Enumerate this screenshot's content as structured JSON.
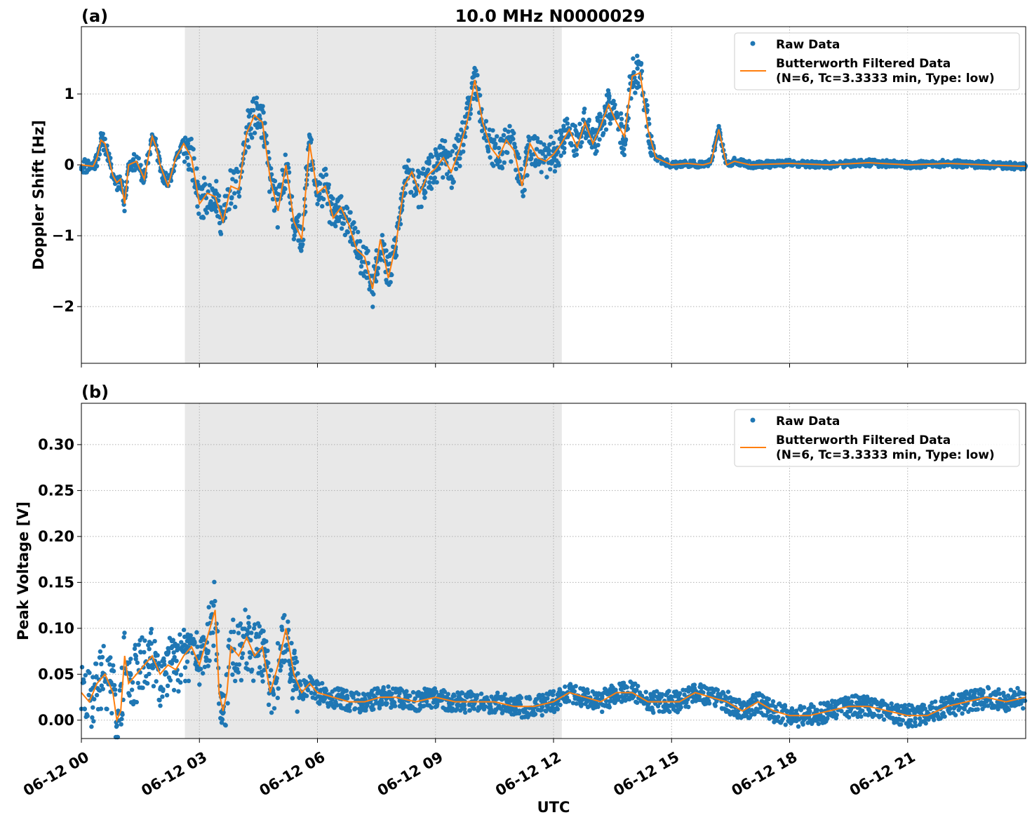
{
  "figure": {
    "title": "10.0 MHz N0000029",
    "xlabel": "UTC"
  },
  "colors": {
    "raw": "#1f77b4",
    "filtered": "#ff7f0e",
    "shade": "#e8e8e8",
    "grid": "#b0b0b0"
  },
  "chart_data": [
    {
      "type": "scatter",
      "panel_label": "(a)",
      "title": "10.0 MHz N0000029",
      "ylabel": "Doppler Shift [Hz]",
      "xlabel": "",
      "x_unit": "hours UTC on 06-12",
      "xlim": [
        0,
        24
      ],
      "ylim": [
        -2.8,
        1.95
      ],
      "yticks": [
        {
          "value": -2,
          "label": "−2"
        },
        {
          "value": -1,
          "label": "−1"
        },
        {
          "value": 0,
          "label": "0"
        },
        {
          "value": 1,
          "label": "1"
        }
      ],
      "shaded_region": [
        2.63,
        12.21
      ],
      "grid": true,
      "legend": {
        "placement": "top-right",
        "entries": [
          "Raw Data",
          "Butterworth Filtered Data",
          "(N=6, Tc=3.3333 min, Type: low)"
        ]
      },
      "series": [
        {
          "name": "Butterworth Filtered Data (N=6, Tc=3.3333 min, Type: low)",
          "kind": "line",
          "x": [
            0,
            0.3,
            0.4,
            0.5,
            0.6,
            0.8,
            0.9,
            1.0,
            1.1,
            1.2,
            1.4,
            1.6,
            1.8,
            1.9,
            2.0,
            2.2,
            2.4,
            2.6,
            2.8,
            3.0,
            3.2,
            3.4,
            3.6,
            3.8,
            4.0,
            4.2,
            4.4,
            4.6,
            4.8,
            5.0,
            5.2,
            5.4,
            5.6,
            5.8,
            6.0,
            6.2,
            6.4,
            6.6,
            6.8,
            7.0,
            7.2,
            7.4,
            7.6,
            7.8,
            8.0,
            8.2,
            8.4,
            8.6,
            8.8,
            9.0,
            9.2,
            9.4,
            9.6,
            9.8,
            10.0,
            10.2,
            10.4,
            10.6,
            10.8,
            11.0,
            11.2,
            11.4,
            11.6,
            11.8,
            12.0,
            12.2,
            12.4,
            12.6,
            12.8,
            13.0,
            13.2,
            13.4,
            13.6,
            13.8,
            14.0,
            14.2,
            14.4,
            14.6,
            14.8,
            15.0,
            15.4,
            15.8,
            16.0,
            16.2,
            16.4,
            16.6,
            17.0,
            18.0,
            19.0,
            20.0,
            21.0,
            22.0,
            23.0,
            24.0
          ],
          "y": [
            0.0,
            -0.02,
            0.1,
            0.35,
            0.3,
            -0.15,
            -0.25,
            -0.2,
            -0.55,
            0.0,
            0.05,
            -0.2,
            0.4,
            0.25,
            0.0,
            -0.3,
            0.1,
            0.3,
            0.1,
            -0.55,
            -0.4,
            -0.45,
            -0.8,
            -0.3,
            -0.35,
            0.45,
            0.7,
            0.6,
            -0.2,
            -0.65,
            0.0,
            -0.8,
            -1.05,
            0.3,
            -0.4,
            -0.3,
            -0.75,
            -0.6,
            -0.85,
            -1.2,
            -1.3,
            -1.75,
            -1.05,
            -1.6,
            -1.1,
            -0.3,
            -0.1,
            -0.4,
            -0.15,
            -0.05,
            0.1,
            -0.1,
            0.2,
            0.6,
            1.2,
            0.6,
            0.25,
            0.1,
            0.35,
            0.2,
            -0.3,
            0.3,
            0.1,
            0.05,
            0.15,
            0.3,
            0.5,
            0.25,
            0.6,
            0.3,
            0.55,
            0.85,
            0.6,
            0.4,
            1.25,
            1.3,
            0.5,
            0.1,
            0.05,
            0.0,
            0.02,
            0.0,
            0.03,
            0.5,
            0.0,
            0.05,
            0.0,
            0.02,
            0.0,
            0.03,
            0.0,
            0.02,
            0.0,
            -0.02
          ]
        }
      ]
    },
    {
      "type": "scatter",
      "panel_label": "(b)",
      "title": "",
      "ylabel": "Peak Voltage [V]",
      "xlabel": "UTC",
      "x_unit": "hours UTC on 06-12",
      "xlim": [
        0,
        24
      ],
      "ylim": [
        -0.02,
        0.345
      ],
      "yticks": [
        {
          "value": 0.0,
          "label": "0.00"
        },
        {
          "value": 0.05,
          "label": "0.05"
        },
        {
          "value": 0.1,
          "label": "0.10"
        },
        {
          "value": 0.15,
          "label": "0.15"
        },
        {
          "value": 0.2,
          "label": "0.20"
        },
        {
          "value": 0.25,
          "label": "0.25"
        },
        {
          "value": 0.3,
          "label": "0.30"
        }
      ],
      "xticks": [
        {
          "value": 0,
          "label": "06-12 00"
        },
        {
          "value": 3,
          "label": "06-12 03"
        },
        {
          "value": 6,
          "label": "06-12 06"
        },
        {
          "value": 9,
          "label": "06-12 09"
        },
        {
          "value": 12,
          "label": "06-12 12"
        },
        {
          "value": 15,
          "label": "06-12 15"
        },
        {
          "value": 18,
          "label": "06-12 18"
        },
        {
          "value": 21,
          "label": "06-12 21"
        }
      ],
      "shaded_region": [
        2.63,
        12.21
      ],
      "grid": true,
      "legend": {
        "placement": "top-right",
        "entries": [
          "Raw Data",
          "Butterworth Filtered Data",
          "(N=6, Tc=3.3333 min, Type: low)"
        ]
      },
      "series": [
        {
          "name": "Butterworth Filtered Data (N=6, Tc=3.3333 min, Type: low)",
          "kind": "line",
          "x": [
            0,
            0.2,
            0.4,
            0.6,
            0.8,
            0.9,
            1.0,
            1.1,
            1.2,
            1.4,
            1.6,
            1.8,
            2.0,
            2.2,
            2.4,
            2.6,
            2.8,
            3.0,
            3.2,
            3.4,
            3.5,
            3.6,
            3.7,
            3.8,
            4.0,
            4.2,
            4.4,
            4.6,
            4.8,
            5.0,
            5.2,
            5.4,
            5.6,
            5.8,
            6.0,
            6.4,
            6.8,
            7.2,
            7.6,
            8.0,
            8.5,
            9.0,
            9.5,
            10.0,
            10.5,
            11.0,
            11.5,
            12.0,
            12.4,
            12.8,
            13.2,
            13.6,
            14.0,
            14.4,
            14.8,
            15.2,
            15.6,
            16.0,
            16.4,
            16.8,
            17.2,
            17.6,
            18.0,
            18.5,
            19.0,
            19.5,
            20.0,
            20.5,
            21.0,
            21.5,
            22.0,
            22.5,
            23.0,
            23.5,
            24.0
          ],
          "y": [
            0.03,
            0.02,
            0.04,
            0.05,
            0.03,
            0.0,
            0.01,
            0.07,
            0.04,
            0.05,
            0.06,
            0.07,
            0.05,
            0.06,
            0.055,
            0.07,
            0.08,
            0.06,
            0.09,
            0.12,
            0.03,
            0.01,
            0.03,
            0.08,
            0.07,
            0.09,
            0.07,
            0.08,
            0.03,
            0.06,
            0.1,
            0.05,
            0.03,
            0.04,
            0.03,
            0.025,
            0.02,
            0.02,
            0.025,
            0.025,
            0.02,
            0.025,
            0.02,
            0.02,
            0.02,
            0.015,
            0.015,
            0.02,
            0.03,
            0.025,
            0.02,
            0.03,
            0.03,
            0.02,
            0.02,
            0.02,
            0.03,
            0.025,
            0.02,
            0.01,
            0.02,
            0.01,
            0.005,
            0.005,
            0.01,
            0.015,
            0.015,
            0.01,
            0.005,
            0.005,
            0.015,
            0.02,
            0.025,
            0.02,
            0.025
          ]
        }
      ]
    }
  ]
}
